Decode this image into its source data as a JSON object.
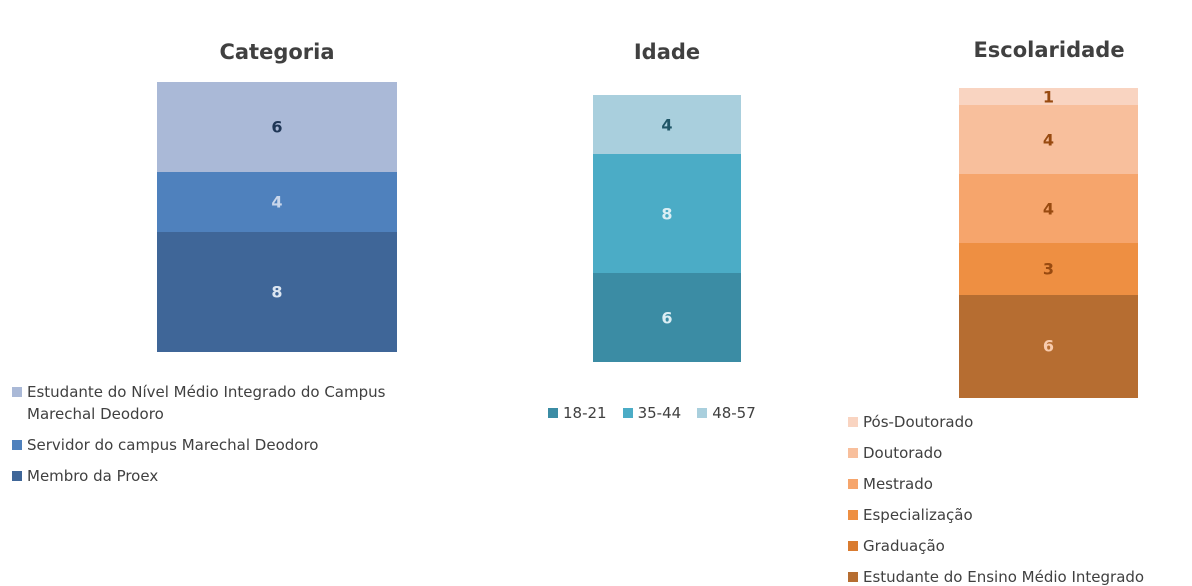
{
  "chart_data": [
    {
      "type": "bar",
      "stacked": true,
      "title": "Categoria",
      "legend_orientation": "vertical",
      "series": [
        {
          "name": "Membro da Proex",
          "color": "#3f6698",
          "label_color": "#dce6f1",
          "values": [
            8
          ]
        },
        {
          "name": "Servidor do campus Marechal Deodoro",
          "color": "#4f81bd",
          "label_color": "#c9d6ea",
          "values": [
            4
          ]
        },
        {
          "name": "Estudante do Nível Médio Integrado do Campus Marechal Deodoro",
          "color": "#aab9d7",
          "label_color": "#1f3656",
          "values": [
            6
          ]
        }
      ]
    },
    {
      "type": "bar",
      "stacked": true,
      "title": "Idade",
      "legend_orientation": "horizontal",
      "series": [
        {
          "name": "18-21",
          "color": "#3b8ca4",
          "label_color": "#dbeef4",
          "values": [
            6
          ]
        },
        {
          "name": "35-44",
          "color": "#4bacc6",
          "label_color": "#dbeef4",
          "values": [
            8
          ]
        },
        {
          "name": "48-57",
          "color": "#a9cfdd",
          "label_color": "#1f5566",
          "values": [
            4
          ]
        }
      ]
    },
    {
      "type": "bar",
      "stacked": true,
      "title": "Escolaridade",
      "legend_orientation": "vertical",
      "series": [
        {
          "name": "Estudante do Ensino Médio Integrado",
          "color": "#b66d31",
          "label_color": "#f8cbad",
          "values": [
            6
          ]
        },
        {
          "name": "Graduação",
          "color": "#d97b30",
          "label_color": "#f8cbad",
          "values": [
            0
          ]
        },
        {
          "name": "Especialização",
          "color": "#ee8f42",
          "label_color": "#984a10",
          "values": [
            3
          ]
        },
        {
          "name": "Mestrado",
          "color": "#f6a56c",
          "label_color": "#984a10",
          "values": [
            4
          ]
        },
        {
          "name": "Doutorado",
          "color": "#f8bf9c",
          "label_color": "#984a10",
          "values": [
            4
          ]
        },
        {
          "name": "Pós-Doutorado",
          "color": "#f9d4c1",
          "label_color": "#984a10",
          "values": [
            1
          ]
        }
      ]
    }
  ]
}
